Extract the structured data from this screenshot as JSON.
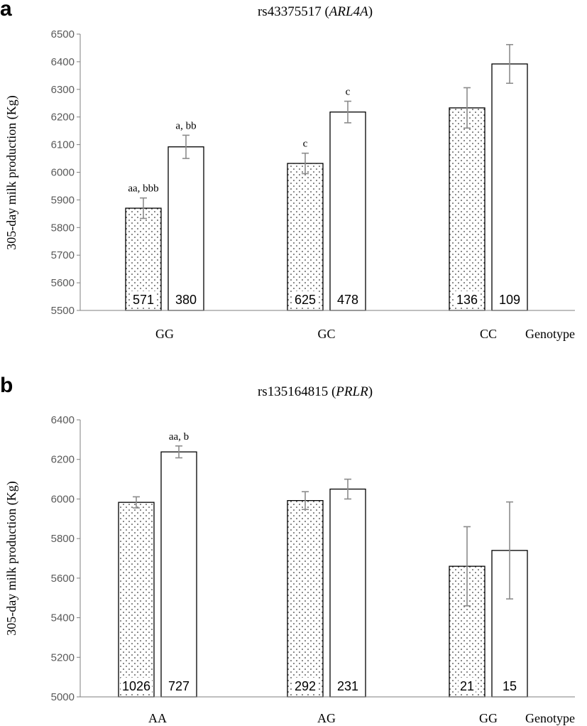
{
  "colors": {
    "axis": "#7f7f7f",
    "errorbar": "#8c8c8c",
    "bar_stroke": "#000000",
    "dots": "#000000"
  },
  "chart_data": [
    {
      "panel": "a",
      "type": "bar",
      "title_prefix": "rs43375517 (",
      "title_gene": "ARL4A",
      "title_suffix": ")",
      "ylabel": "305-day milk production (Kg)",
      "xlabel": "Genotype",
      "ylim": [
        5500,
        6500
      ],
      "yticks": [
        5500,
        5600,
        5700,
        5800,
        5900,
        6000,
        6100,
        6200,
        6300,
        6400,
        6500
      ],
      "categories": [
        "GG",
        "GC",
        "CC"
      ],
      "series": [
        {
          "pattern": "dotted",
          "values": [
            5870,
            6032,
            6233
          ],
          "errors": [
            37,
            37,
            73
          ],
          "n": [
            "571",
            "625",
            "136"
          ],
          "sig": [
            "aa, bbb",
            "c",
            ""
          ]
        },
        {
          "pattern": "white",
          "values": [
            6092,
            6218,
            6392
          ],
          "errors": [
            42,
            39,
            70
          ],
          "n": [
            "380",
            "478",
            "109"
          ],
          "sig": [
            "a, bb",
            "c",
            ""
          ]
        }
      ]
    },
    {
      "panel": "b",
      "type": "bar",
      "title_prefix": "rs135164815 (",
      "title_gene": "PRLR",
      "title_suffix": ")",
      "ylabel": "305-day milk production (Kg)",
      "xlabel": "Genotype",
      "ylim": [
        5000,
        6400
      ],
      "yticks": [
        5000,
        5200,
        5400,
        5600,
        5800,
        6000,
        6200,
        6400
      ],
      "categories": [
        "AA",
        "AG",
        "GG"
      ],
      "series": [
        {
          "pattern": "dotted",
          "values": [
            5983,
            5992,
            5660
          ],
          "errors": [
            28,
            45,
            200
          ],
          "n": [
            "1026",
            "292",
            "21"
          ],
          "sig": [
            "",
            "",
            ""
          ]
        },
        {
          "pattern": "white",
          "values": [
            6238,
            6050,
            5740
          ],
          "errors": [
            30,
            50,
            245
          ],
          "n": [
            "727",
            "231",
            "15"
          ],
          "sig": [
            "aa, b",
            "",
            ""
          ]
        }
      ]
    }
  ]
}
